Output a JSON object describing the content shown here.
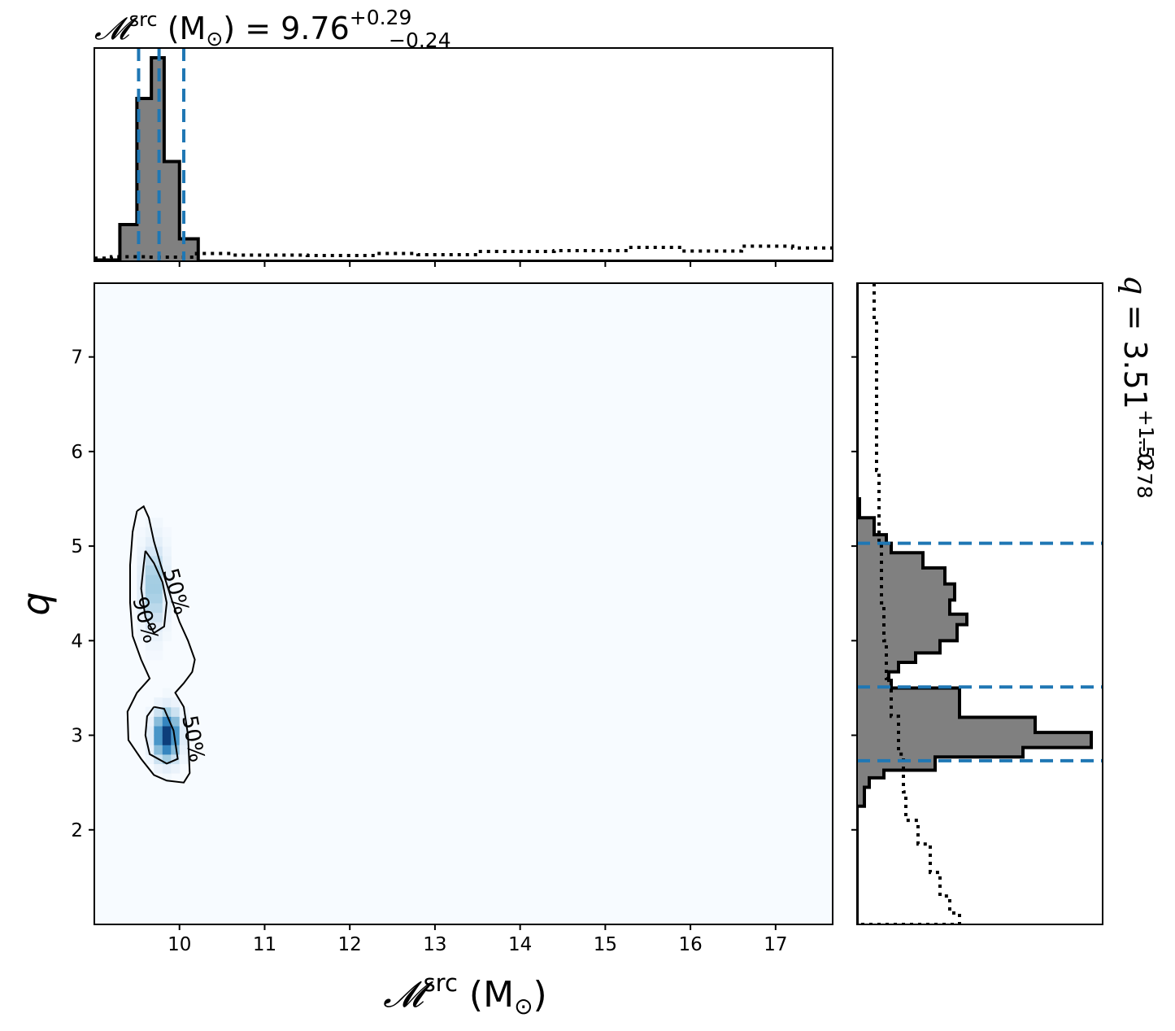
{
  "chart_data": {
    "type": "corner",
    "title_top": {
      "variable": "𝓜",
      "superscript": "src",
      "unit": "(M",
      "unit_symbol": "⊙",
      "unit_close": ")",
      "equals": "=",
      "median": "9.76",
      "upper": "+0.29",
      "lower": "−0.24"
    },
    "title_right": {
      "variable": "q",
      "equals": "=",
      "median": "3.51",
      "upper": "+1.52",
      "lower": "−0.78"
    },
    "xlabel": {
      "variable": "𝓜",
      "superscript": "src",
      "unit": "(M",
      "unit_symbol": "⊙",
      "unit_close": ")"
    },
    "ylabel": "q",
    "xlim": [
      9.0,
      17.67
    ],
    "ylim": [
      1.0,
      7.78
    ],
    "x_ticks": [
      "10",
      "11",
      "12",
      "13",
      "14",
      "15",
      "16",
      "17"
    ],
    "y_ticks": [
      "2",
      "3",
      "4",
      "5",
      "6",
      "7"
    ],
    "x_tick_values": [
      10,
      11,
      12,
      13,
      14,
      15,
      16,
      17
    ],
    "y_tick_values": [
      2,
      3,
      4,
      5,
      6,
      7
    ],
    "colors": {
      "posterior_fill": "#808080",
      "quantile_lines": "#1f77b4",
      "density_background": "#f7fbff",
      "density_peak": "#08306b"
    },
    "mchirp_quantiles": [
      9.52,
      9.76,
      10.05
    ],
    "q_quantiles": [
      2.73,
      3.51,
      5.03
    ],
    "mchirp_histogram": {
      "bins": [
        [
          9.0,
          9.3,
          0.006
        ],
        [
          9.3,
          9.5,
          0.18
        ],
        [
          9.5,
          9.67,
          0.8
        ],
        [
          9.67,
          9.82,
          1.0
        ],
        [
          9.82,
          10.0,
          0.49
        ],
        [
          10.0,
          10.22,
          0.11
        ],
        [
          10.22,
          17.67,
          0.0
        ]
      ]
    },
    "mchirp_prior": {
      "points": [
        [
          9.0,
          0.015
        ],
        [
          9.2,
          0.022
        ],
        [
          9.6,
          0.02
        ],
        [
          10.2,
          0.038
        ],
        [
          10.6,
          0.03
        ],
        [
          11.5,
          0.028
        ],
        [
          12.3,
          0.038
        ],
        [
          12.8,
          0.032
        ],
        [
          13.5,
          0.048
        ],
        [
          14.4,
          0.052
        ],
        [
          15.3,
          0.068
        ],
        [
          15.9,
          0.05
        ],
        [
          16.6,
          0.074
        ],
        [
          17.2,
          0.065
        ],
        [
          17.67,
          0.07
        ]
      ]
    },
    "q_histogram": {
      "bins": [
        [
          1.0,
          2.25,
          0.0
        ],
        [
          2.25,
          2.45,
          0.03
        ],
        [
          2.45,
          2.55,
          0.05
        ],
        [
          2.55,
          2.63,
          0.11
        ],
        [
          2.63,
          2.77,
          0.32
        ],
        [
          2.77,
          2.87,
          0.68
        ],
        [
          2.87,
          3.03,
          0.96
        ],
        [
          3.03,
          3.19,
          0.73
        ],
        [
          3.19,
          3.5,
          0.42
        ],
        [
          3.5,
          3.58,
          0.14
        ],
        [
          3.58,
          3.67,
          0.13
        ],
        [
          3.67,
          3.77,
          0.17
        ],
        [
          3.77,
          3.87,
          0.24
        ],
        [
          3.87,
          4.0,
          0.34
        ],
        [
          4.0,
          4.17,
          0.41
        ],
        [
          4.17,
          4.28,
          0.45
        ],
        [
          4.28,
          4.43,
          0.38
        ],
        [
          4.43,
          4.6,
          0.4
        ],
        [
          4.6,
          4.77,
          0.36
        ],
        [
          4.77,
          4.93,
          0.27
        ],
        [
          4.93,
          5.03,
          0.14
        ],
        [
          5.03,
          5.12,
          0.12
        ],
        [
          5.12,
          5.3,
          0.07
        ],
        [
          5.3,
          5.5,
          0.01
        ],
        [
          5.5,
          7.78,
          0.0
        ]
      ]
    },
    "q_prior": {
      "points": [
        [
          7.78,
          0.07
        ],
        [
          7.4,
          0.08
        ],
        [
          6.6,
          0.08
        ],
        [
          5.8,
          0.09
        ],
        [
          5.0,
          0.1
        ],
        [
          4.4,
          0.11
        ],
        [
          4.0,
          0.12
        ],
        [
          3.6,
          0.14
        ],
        [
          3.2,
          0.17
        ],
        [
          2.8,
          0.19
        ],
        [
          2.4,
          0.2
        ],
        [
          2.1,
          0.25
        ],
        [
          1.85,
          0.3
        ],
        [
          1.55,
          0.34
        ],
        [
          1.3,
          0.38
        ],
        [
          1.12,
          0.42
        ],
        [
          1.04,
          0.42
        ],
        [
          1.0,
          0.08
        ]
      ]
    },
    "density_peaks": [
      {
        "x": 9.85,
        "y": 3.0,
        "sx": 0.1,
        "sy": 0.17,
        "w": 1.0
      },
      {
        "x": 9.7,
        "y": 4.58,
        "sx": 0.1,
        "sy": 0.32,
        "w": 0.38
      }
    ],
    "contours": [
      {
        "label": "90%",
        "points": [
          [
            9.5,
            5.37
          ],
          [
            9.58,
            5.42
          ],
          [
            9.64,
            5.3
          ],
          [
            9.7,
            5.05
          ],
          [
            9.78,
            4.8
          ],
          [
            9.85,
            4.6
          ],
          [
            9.92,
            4.4
          ],
          [
            10.0,
            4.2
          ],
          [
            10.1,
            4.0
          ],
          [
            10.18,
            3.8
          ],
          [
            10.15,
            3.67
          ],
          [
            10.05,
            3.55
          ],
          [
            9.95,
            3.45
          ],
          [
            10.05,
            3.3
          ],
          [
            10.1,
            3.0
          ],
          [
            10.12,
            2.6
          ],
          [
            10.05,
            2.5
          ],
          [
            9.85,
            2.52
          ],
          [
            9.7,
            2.58
          ],
          [
            9.55,
            2.75
          ],
          [
            9.4,
            2.95
          ],
          [
            9.39,
            3.25
          ],
          [
            9.5,
            3.45
          ],
          [
            9.65,
            3.6
          ],
          [
            9.55,
            3.8
          ],
          [
            9.45,
            4.05
          ],
          [
            9.42,
            4.4
          ],
          [
            9.42,
            4.8
          ],
          [
            9.45,
            5.15
          ],
          [
            9.5,
            5.37
          ]
        ]
      },
      {
        "label": "50%",
        "points": [
          [
            9.6,
            4.95
          ],
          [
            9.7,
            4.82
          ],
          [
            9.8,
            4.62
          ],
          [
            9.85,
            4.4
          ],
          [
            9.82,
            4.15
          ],
          [
            9.7,
            4.08
          ],
          [
            9.6,
            4.25
          ],
          [
            9.55,
            4.55
          ],
          [
            9.58,
            4.8
          ],
          [
            9.6,
            4.95
          ]
        ]
      },
      {
        "label": "50%",
        "points": [
          [
            9.7,
            3.3
          ],
          [
            9.82,
            3.28
          ],
          [
            9.93,
            3.05
          ],
          [
            9.98,
            2.75
          ],
          [
            9.85,
            2.7
          ],
          [
            9.65,
            2.8
          ],
          [
            9.6,
            3.0
          ],
          [
            9.62,
            3.2
          ],
          [
            9.7,
            3.3
          ]
        ]
      }
    ],
    "contour_labels": [
      {
        "text": "50%",
        "x": 9.88,
        "y": 4.5,
        "rotate": 75
      },
      {
        "text": "90%",
        "x": 9.52,
        "y": 4.2,
        "rotate": 75
      },
      {
        "text": "50%",
        "x": 10.08,
        "y": 2.95,
        "rotate": 80
      }
    ]
  }
}
